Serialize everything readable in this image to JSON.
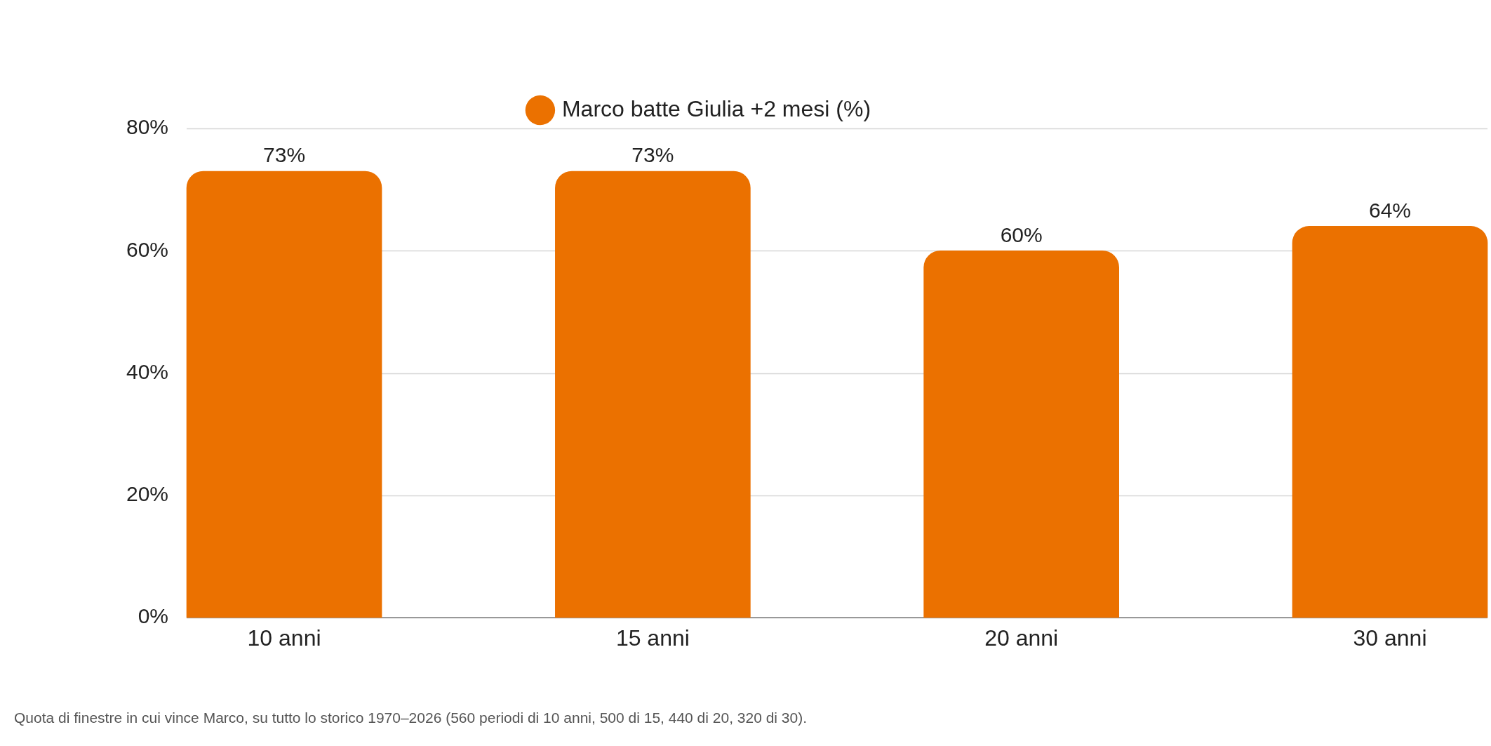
{
  "chart_data": {
    "type": "bar",
    "title": null,
    "categories": [
      "10 anni",
      "15 anni",
      "20 anni",
      "30 anni"
    ],
    "series": [
      {
        "name": "Marco batte Giulia +2 mesi (%)",
        "color": "#eb7100",
        "values": [
          73,
          73,
          60,
          64
        ],
        "value_labels": [
          "73%",
          "73%",
          "60%",
          "64%"
        ]
      }
    ],
    "ylim": [
      0,
      80
    ],
    "yticks": [
      {
        "value": 0,
        "label": "0%"
      },
      {
        "value": 20,
        "label": "20%"
      },
      {
        "value": 40,
        "label": "40%"
      },
      {
        "value": 60,
        "label": "60%"
      },
      {
        "value": 80,
        "label": "80%"
      }
    ],
    "grid": "y",
    "legend": "top",
    "annotations": [
      "Quota di finestre in cui vince Marco, su tutto lo storico 1970–2026 (560 periodi di 10 anni, 500 di 15, 440 di 20, 320 di 30)."
    ]
  }
}
